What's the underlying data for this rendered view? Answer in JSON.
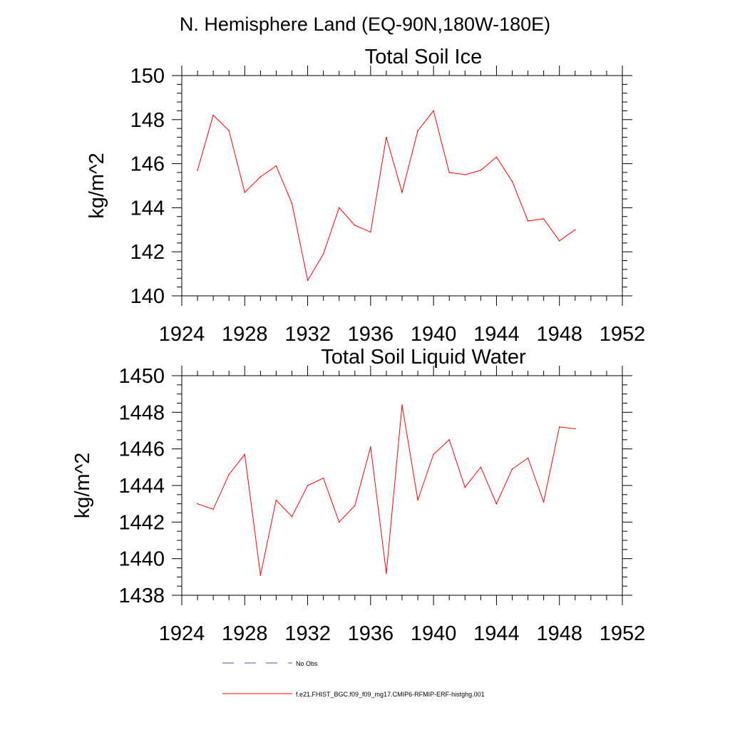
{
  "page_title": "N. Hemisphere Land (EQ-90N,180W-180E)",
  "colors": {
    "series": "#ff0000",
    "noobs": "#5050a0",
    "axis": "#000000"
  },
  "legend": [
    {
      "label": "No Obs",
      "style": "dashed",
      "color": "#5050a0"
    },
    {
      "label": "f.e21.FHIST_BGC.f09_f09_mg17.CMIP6-RFMIP-ERF-histghg.001",
      "style": "solid",
      "color": "#ff0000"
    }
  ],
  "chart_data": [
    {
      "type": "line",
      "title": "Total Soil Ice",
      "xlabel": "",
      "ylabel": "kg/m^2",
      "xlim": [
        1924,
        1952
      ],
      "ylim": [
        140,
        150
      ],
      "xticks": [
        1924,
        1928,
        1932,
        1936,
        1940,
        1944,
        1948,
        1952
      ],
      "yticks": [
        140,
        142,
        144,
        146,
        148,
        150
      ],
      "x": [
        1925,
        1926,
        1927,
        1928,
        1929,
        1930,
        1931,
        1932,
        1933,
        1934,
        1935,
        1936,
        1937,
        1938,
        1939,
        1940,
        1941,
        1942,
        1943,
        1944,
        1945,
        1946,
        1947,
        1948,
        1949
      ],
      "series": [
        {
          "name": "f.e21.FHIST_BGC.f09_f09_mg17.CMIP6-RFMIP-ERF-histghg.001",
          "values": [
            145.7,
            148.2,
            147.5,
            144.7,
            145.4,
            145.9,
            144.2,
            140.7,
            141.9,
            144.0,
            143.2,
            142.9,
            147.2,
            144.7,
            147.5,
            148.4,
            145.6,
            145.5,
            145.7,
            146.3,
            145.2,
            143.4,
            143.5,
            142.5,
            143.0
          ]
        }
      ]
    },
    {
      "type": "line",
      "title": "Total Soil Liquid Water",
      "xlabel": "",
      "ylabel": "kg/m^2",
      "xlim": [
        1924,
        1952
      ],
      "ylim": [
        1438,
        1450
      ],
      "xticks": [
        1924,
        1928,
        1932,
        1936,
        1940,
        1944,
        1948,
        1952
      ],
      "yticks": [
        1438,
        1440,
        1442,
        1444,
        1446,
        1448,
        1450
      ],
      "x": [
        1925,
        1926,
        1927,
        1928,
        1929,
        1930,
        1931,
        1932,
        1933,
        1934,
        1935,
        1936,
        1937,
        1938,
        1939,
        1940,
        1941,
        1942,
        1943,
        1944,
        1945,
        1946,
        1947,
        1948,
        1949
      ],
      "series": [
        {
          "name": "f.e21.FHIST_BGC.f09_f09_mg17.CMIP6-RFMIP-ERF-histghg.001",
          "values": [
            1443.0,
            1442.7,
            1444.6,
            1445.7,
            1439.1,
            1443.2,
            1442.3,
            1444.0,
            1444.4,
            1442.0,
            1442.9,
            1446.1,
            1439.2,
            1448.4,
            1443.2,
            1445.7,
            1446.5,
            1443.9,
            1445.0,
            1443.0,
            1444.9,
            1445.5,
            1443.1,
            1447.2,
            1447.1
          ]
        }
      ]
    }
  ]
}
